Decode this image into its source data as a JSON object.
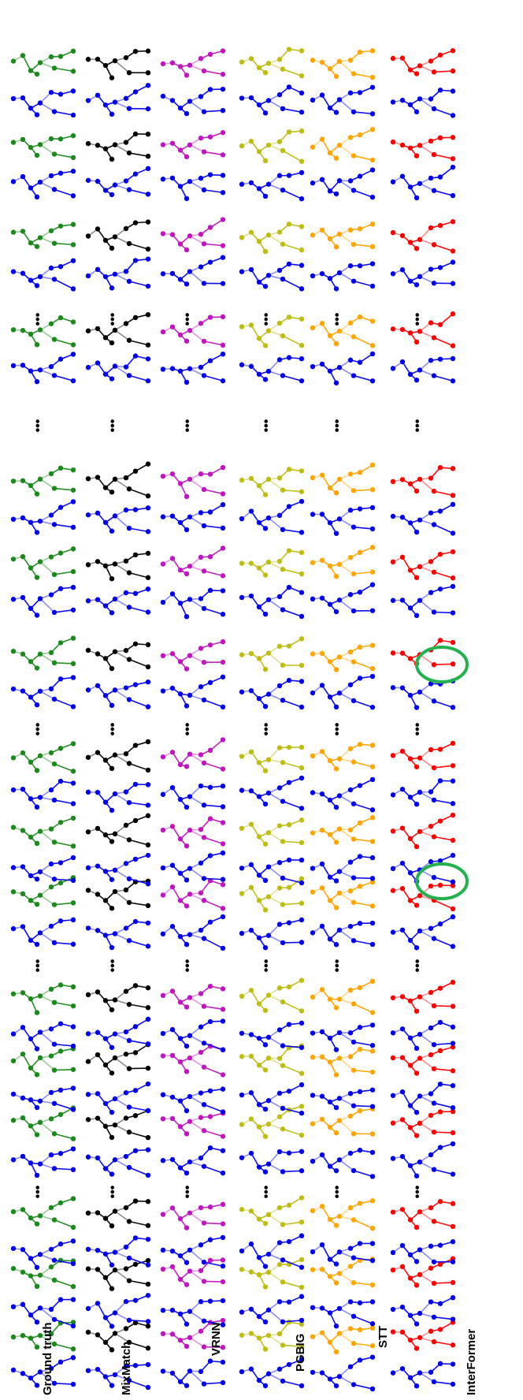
{
  "rows": [
    {
      "id": "ground-truth",
      "label": "Ground truth",
      "color": "#1a8a1a"
    },
    {
      "id": "mixmatch",
      "label": "MixMatch",
      "color": "#000000"
    },
    {
      "id": "vrnn",
      "label": "VRNN",
      "color": "#c015c0"
    },
    {
      "id": "pgbig",
      "label": "PGBIG",
      "color": "#bdbd14"
    },
    {
      "id": "stt",
      "label": "STT",
      "color": "#ffa500"
    },
    {
      "id": "interformer",
      "label": "InterFormer",
      "color": "#ff0000"
    }
  ],
  "partner_color": "#0000ee",
  "highlight_color": "#22b14c",
  "ellipsis": "•••"
}
